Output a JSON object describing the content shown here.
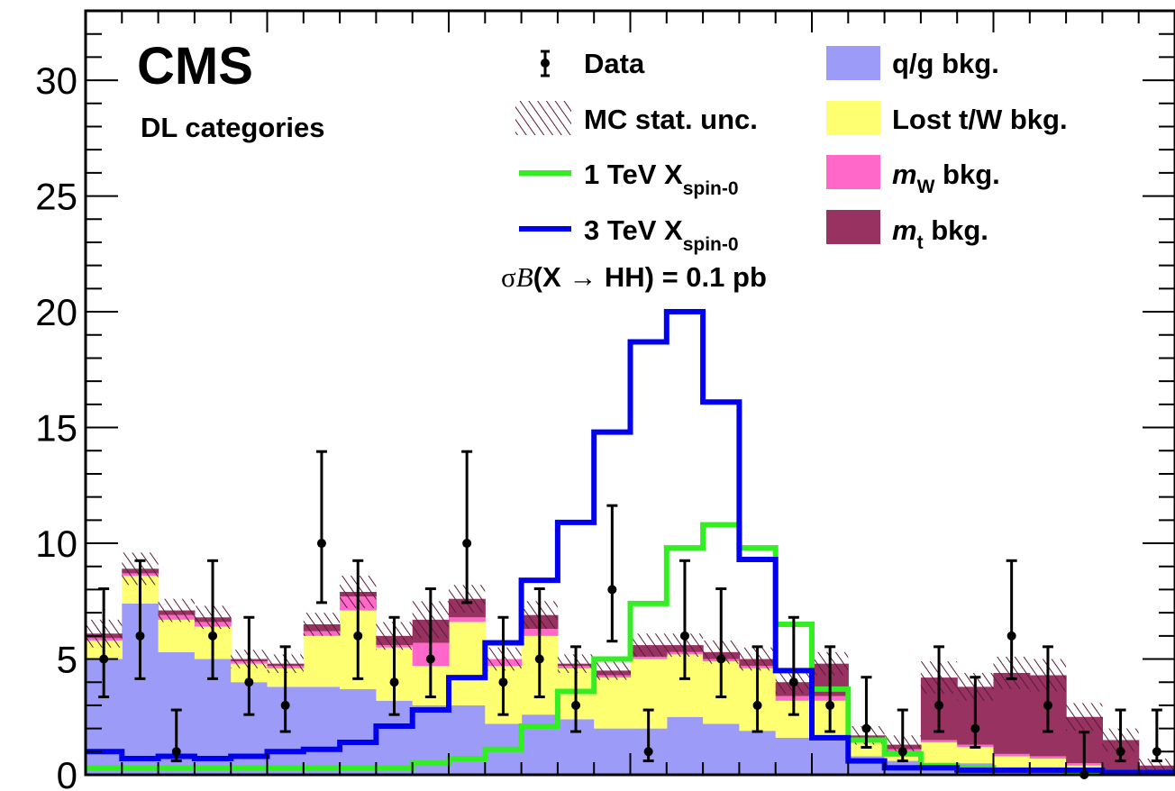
{
  "chart_data": {
    "type": "histogram",
    "ylim": [
      0,
      33
    ],
    "y_ticks": [
      "0",
      "5",
      "10",
      "15",
      "20",
      "25",
      "30"
    ],
    "n_bins": 30,
    "experiment_label": "CMS",
    "category_label": "DL categories",
    "xsec_label": {
      "prefix": "σ",
      "italic": "B",
      "suffix": "(X  → HH) = 0.1 pb"
    },
    "legend": {
      "data": "Data",
      "mc_unc": "MC stat. unc.",
      "sig1": {
        "text": "1 TeV X",
        "sub": "spin-0"
      },
      "sig3": {
        "text": "3 TeV X",
        "sub": "spin-0"
      },
      "qg": "q/g bkg.",
      "lost": "Lost t/W bkg.",
      "mw": {
        "italic": "m",
        "sub": "W",
        "text": " bkg."
      },
      "mt": {
        "italic": "m",
        "sub": "t",
        "text": " bkg."
      }
    },
    "colors": {
      "qg": "#9c9cf8",
      "lost": "#ffff72",
      "mw": "#ff68c8",
      "mt": "#973261",
      "hatch": "#5a1a3a",
      "sig1": "#33ee22",
      "sig3": "#0000ee",
      "data": "#000000"
    },
    "series": [
      {
        "name": "q/g bkg.",
        "values": [
          5.0,
          7.4,
          5.3,
          5.0,
          4.0,
          3.8,
          3.8,
          3.7,
          3.2,
          3.0,
          3.0,
          2.2,
          2.6,
          2.4,
          2.0,
          2.0,
          2.5,
          2.2,
          1.9,
          1.6,
          1.6,
          0.8,
          0.6,
          0.5,
          0.5,
          0.3,
          0.3,
          0.2,
          0.1,
          0.1
        ]
      },
      {
        "name": "Lost t/W bkg.",
        "values": [
          0.8,
          1.2,
          1.4,
          1.4,
          0.8,
          0.8,
          2.2,
          3.4,
          2.3,
          1.7,
          3.6,
          2.5,
          3.4,
          2.2,
          2.2,
          3.0,
          2.7,
          2.7,
          2.7,
          1.6,
          1.6,
          0.6,
          0.4,
          0.9,
          0.7,
          0.5,
          0.4,
          0.2,
          0.1,
          0.1
        ]
      },
      {
        "name": "m_W bkg.",
        "values": [
          0.1,
          0.1,
          0.2,
          0.2,
          0.1,
          0.1,
          0.2,
          0.6,
          0.1,
          1.0,
          0.2,
          0.3,
          0.3,
          0.1,
          0.1,
          0.1,
          0.1,
          0.1,
          0.1,
          0.2,
          0.2,
          0.1,
          0.1,
          0.1,
          0.1,
          0.1,
          0.1,
          0.1,
          0.0,
          0.0
        ]
      },
      {
        "name": "m_t bkg.",
        "values": [
          0.2,
          0.2,
          0.2,
          0.2,
          0.1,
          0.1,
          0.3,
          0.2,
          0.4,
          1.0,
          0.8,
          0.0,
          0.6,
          0.1,
          0.2,
          0.5,
          0.3,
          0.3,
          0.3,
          0.6,
          1.4,
          0.2,
          0.2,
          2.7,
          2.5,
          3.5,
          3.5,
          2.0,
          1.3,
          0.2
        ]
      }
    ],
    "mc_unc": [
      0.6,
      0.7,
      0.5,
      0.5,
      0.4,
      0.4,
      0.5,
      0.7,
      0.6,
      0.8,
      0.6,
      0.5,
      0.6,
      0.4,
      0.4,
      0.5,
      0.5,
      0.5,
      0.5,
      0.5,
      0.5,
      0.4,
      0.4,
      0.7,
      0.6,
      0.7,
      0.7,
      0.6,
      0.5,
      0.3
    ],
    "sig1": [
      0.3,
      0.3,
      0.3,
      0.3,
      0.3,
      0.3,
      0.3,
      0.3,
      0.3,
      0.5,
      0.7,
      1.1,
      2.1,
      3.6,
      5.0,
      7.4,
      9.8,
      10.8,
      9.8,
      6.5,
      3.7,
      1.5,
      0.9,
      0.4,
      0.3,
      0.2,
      0.2,
      0.1,
      0.1,
      0.1
    ],
    "sig3": [
      1.0,
      0.7,
      0.8,
      0.7,
      0.8,
      1.0,
      1.1,
      1.4,
      2.1,
      2.8,
      4.2,
      5.7,
      8.4,
      10.9,
      14.8,
      18.7,
      20.0,
      16.1,
      9.3,
      4.5,
      1.6,
      0.6,
      0.3,
      0.3,
      0.2,
      0.2,
      0.2,
      0.2,
      0.1,
      0.1
    ],
    "data": [
      5,
      6,
      1,
      6,
      4,
      3,
      10,
      6,
      4,
      5,
      10,
      4,
      5,
      3,
      8,
      1,
      6,
      5,
      3,
      4,
      3,
      2,
      1,
      3,
      2,
      6,
      3,
      0,
      1,
      1
    ]
  }
}
